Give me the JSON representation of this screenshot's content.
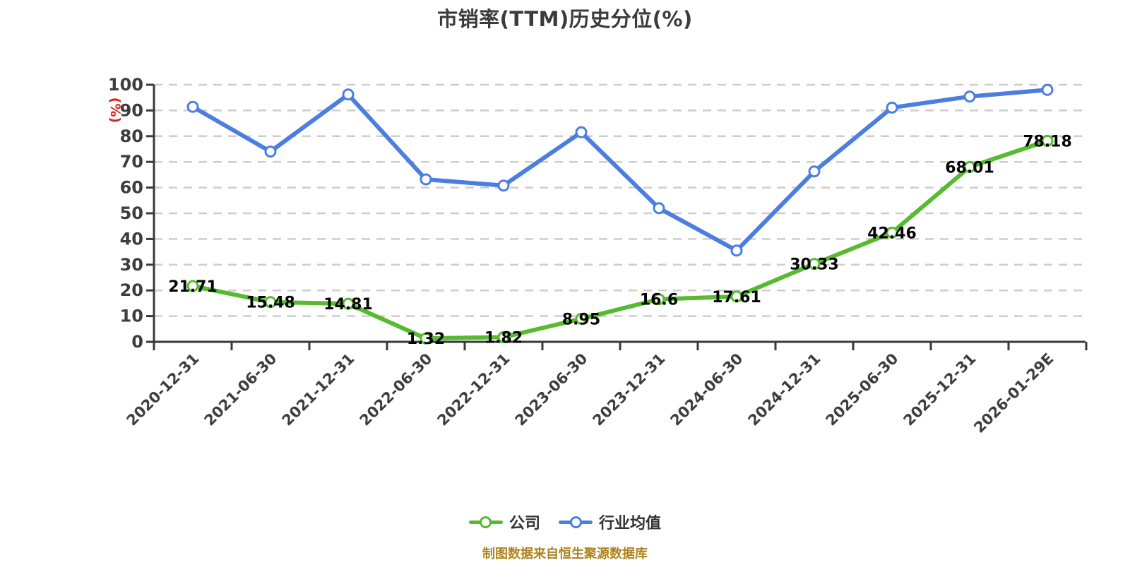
{
  "title": "市销率(TTM)历史分位(%)",
  "caption": "制图数据来自恒生聚源数据库",
  "chart_data": {
    "type": "line",
    "title": "市销率(TTM)历史分位(%)",
    "ylabel": "(%)",
    "ylim": [
      0,
      100
    ],
    "ytick_step": 10,
    "grid": "horizontal dashed gridlines on",
    "legend_position": "bottom-center",
    "categories": [
      "2020-12-31",
      "2021-06-30",
      "2021-12-31",
      "2022-06-30",
      "2022-12-31",
      "2023-06-30",
      "2023-12-31",
      "2024-06-30",
      "2024-12-31",
      "2025-06-30",
      "2025-12-31",
      "2026-01-29E"
    ],
    "series": [
      {
        "key": "company",
        "name": "公司",
        "color": "#57BA31",
        "show_point_labels": true,
        "values": [
          21.71,
          15.48,
          14.81,
          1.32,
          1.82,
          8.95,
          16.6,
          17.61,
          30.33,
          42.46,
          68.01,
          78.18
        ]
      },
      {
        "key": "industry-average",
        "name": "行业均值",
        "color": "#4C7EE0",
        "show_point_labels": false,
        "values": [
          91.4,
          74.0,
          96.2,
          63.2,
          60.8,
          81.5,
          52.0,
          35.5,
          66.3,
          91.1,
          95.4,
          98.0
        ]
      }
    ]
  },
  "colors": {
    "company_line": "#57BA31",
    "industry_line": "#4C7EE0",
    "marker_fill": "#FFFFFF",
    "title_text": "#3B3B3B",
    "axis_line": "#3A3A3A",
    "axis_label": "#3D3D3D",
    "gridline": "#CDCDCD",
    "data_label": "#050505",
    "y_unit_label": "#E02020",
    "caption_text": "#AD831C",
    "legend_text": "#333333"
  }
}
